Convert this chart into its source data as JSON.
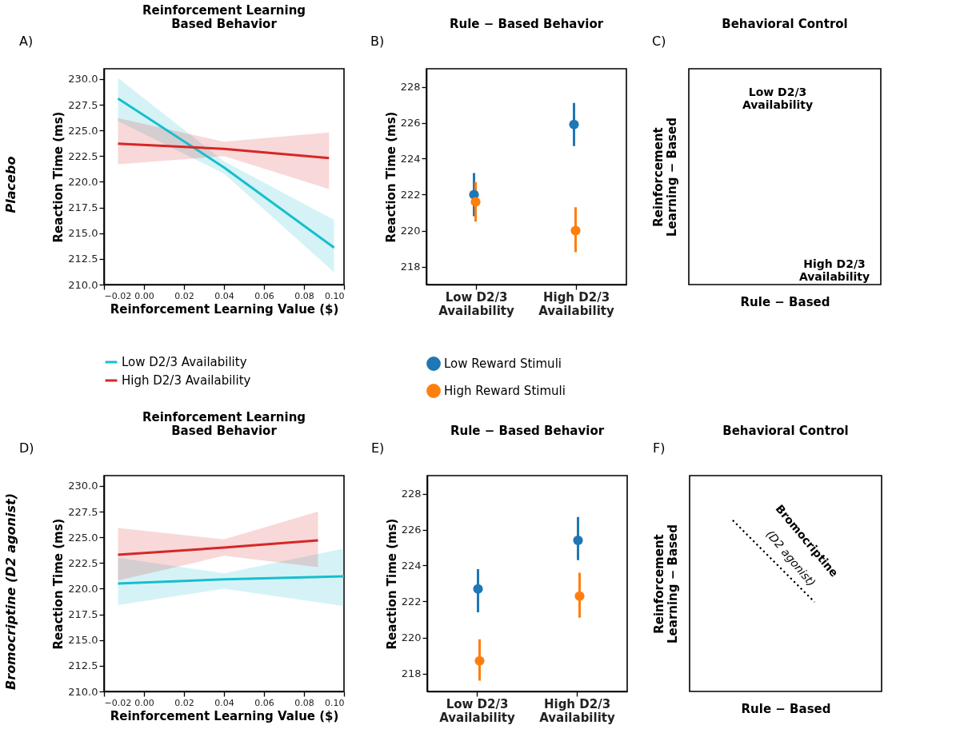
{
  "chart_data": [
    {
      "type": "line",
      "title": "Reinforcement Learning\nBased Behavior",
      "xlabel": "Reinforcement Learning Value ($)",
      "ylabel": "Reaction Time (ms)",
      "xlim": [
        -0.02,
        0.1
      ],
      "xticks": [
        {
          "value": -0.02,
          "label": "−0.02"
        },
        {
          "value": 0,
          "label": "0.00"
        },
        0.02,
        0.04,
        0.06,
        0.08,
        {
          "value": 0.1,
          "label": "0.10"
        }
      ],
      "ylim": [
        210,
        231
      ],
      "yticks": [
        {
          "value": 210,
          "label": "210.0"
        },
        212.5,
        {
          "value": 215,
          "label": "215.0"
        },
        217.5,
        {
          "value": 220,
          "label": "220.0"
        },
        222.5,
        {
          "value": 225,
          "label": "225.0"
        },
        227.5,
        {
          "value": 230,
          "label": "230.0"
        }
      ],
      "legend": "bottom",
      "series": [
        {
          "name": "Low D2/3 Availability",
          "color": "#17becf",
          "x": [
            -0.013,
            0.04,
            0.095
          ],
          "values": [
            228.1,
            221.4,
            213.6
          ],
          "lower": [
            225.9,
            220.8,
            211.2
          ],
          "upper": [
            230.1,
            222.0,
            216.3
          ]
        },
        {
          "name": "High D2/3 Availability",
          "color": "#d62728",
          "x": [
            -0.013,
            0.04,
            0.0925
          ],
          "values": [
            223.7,
            223.2,
            222.3
          ],
          "lower": [
            221.7,
            222.5,
            219.3
          ],
          "upper": [
            226.2,
            223.9,
            224.8
          ]
        }
      ],
      "annotations": [
        "A)",
        "Placebo"
      ]
    },
    {
      "type": "scatter",
      "title": "Rule − Based Behavior",
      "ylabel": "Reaction Time (ms)",
      "categories": [
        "Low D2/3\nAvailability",
        "High D2/3\nAvailability"
      ],
      "ylim": [
        217,
        229
      ],
      "yticks": [
        218,
        220,
        222,
        224,
        226,
        228
      ],
      "legend": "bottom",
      "marker": "circle",
      "series": [
        {
          "name": "Low Reward Stimuli",
          "color": "#1f77b4",
          "values": [
            222.0,
            225.9
          ],
          "errors": [
            [
              220.8,
              223.2
            ],
            [
              224.7,
              227.1
            ]
          ]
        },
        {
          "name": "High Reward Stimuli",
          "color": "#ff7f0e",
          "values": [
            221.6,
            220.0
          ],
          "errors": [
            [
              220.5,
              222.7
            ],
            [
              218.8,
              221.3
            ]
          ]
        }
      ],
      "annotations": [
        "B)"
      ]
    },
    {
      "type": "other",
      "title": "Behavioral Control",
      "xlabel": "Rule − Based",
      "ylabel": "Reinforcement\nLearning − Based",
      "annotations": [
        "C)",
        "Low D2/3\nAvailability",
        "High D2/3\nAvailability"
      ]
    },
    {
      "type": "line",
      "title": "Reinforcement Learning\nBased Behavior",
      "xlabel": "Reinforcement Learning Value ($)",
      "ylabel": "Reaction Time (ms)",
      "xlim": [
        -0.02,
        0.1
      ],
      "xticks": [
        {
          "value": -0.02,
          "label": "−0.02"
        },
        {
          "value": 0,
          "label": "0.00"
        },
        0.02,
        0.04,
        0.06,
        0.08,
        {
          "value": 0.1,
          "label": "0.10"
        }
      ],
      "ylim": [
        210,
        231
      ],
      "yticks": [
        {
          "value": 210,
          "label": "210.0"
        },
        212.5,
        {
          "value": 215,
          "label": "215.0"
        },
        217.5,
        {
          "value": 220,
          "label": "220.0"
        },
        222.5,
        {
          "value": 225,
          "label": "225.0"
        },
        227.5,
        {
          "value": 230,
          "label": "230.0"
        }
      ],
      "series": [
        {
          "color": "#17becf",
          "x": [
            -0.013,
            0.04,
            0.1
          ],
          "values": [
            220.5,
            220.9,
            221.2
          ],
          "lower": [
            218.4,
            220.0,
            218.3
          ],
          "upper": [
            223.0,
            221.5,
            223.9
          ]
        },
        {
          "color": "#d62728",
          "x": [
            -0.013,
            0.04,
            0.087
          ],
          "values": [
            223.3,
            224.0,
            224.7
          ],
          "lower": [
            220.8,
            223.2,
            222.1
          ],
          "upper": [
            225.9,
            224.8,
            227.5
          ]
        }
      ],
      "annotations": [
        "D)",
        "Bromocriptine (D2 agonist)"
      ]
    },
    {
      "type": "scatter",
      "title": "Rule − Based Behavior",
      "ylabel": "Reaction Time (ms)",
      "categories": [
        "Low D2/3\nAvailability",
        "High D2/3\nAvailability"
      ],
      "ylim": [
        217,
        229
      ],
      "yticks": [
        218,
        220,
        222,
        224,
        226,
        228
      ],
      "marker": "circle",
      "series": [
        {
          "color": "#1f77b4",
          "values": [
            222.7,
            225.4
          ],
          "errors": [
            [
              221.4,
              223.8
            ],
            [
              224.3,
              226.7
            ]
          ]
        },
        {
          "color": "#ff7f0e",
          "values": [
            218.7,
            222.3
          ],
          "errors": [
            [
              217.6,
              219.9
            ],
            [
              221.1,
              223.6
            ]
          ]
        }
      ],
      "annotations": [
        "E)"
      ]
    },
    {
      "type": "other",
      "title": "Behavioral Control",
      "xlabel": "Rule − Based",
      "ylabel": "Reinforcement\nLearning − Based",
      "annotations": [
        "F)",
        "Bromocriptine",
        "(D2 agonist)"
      ]
    }
  ]
}
